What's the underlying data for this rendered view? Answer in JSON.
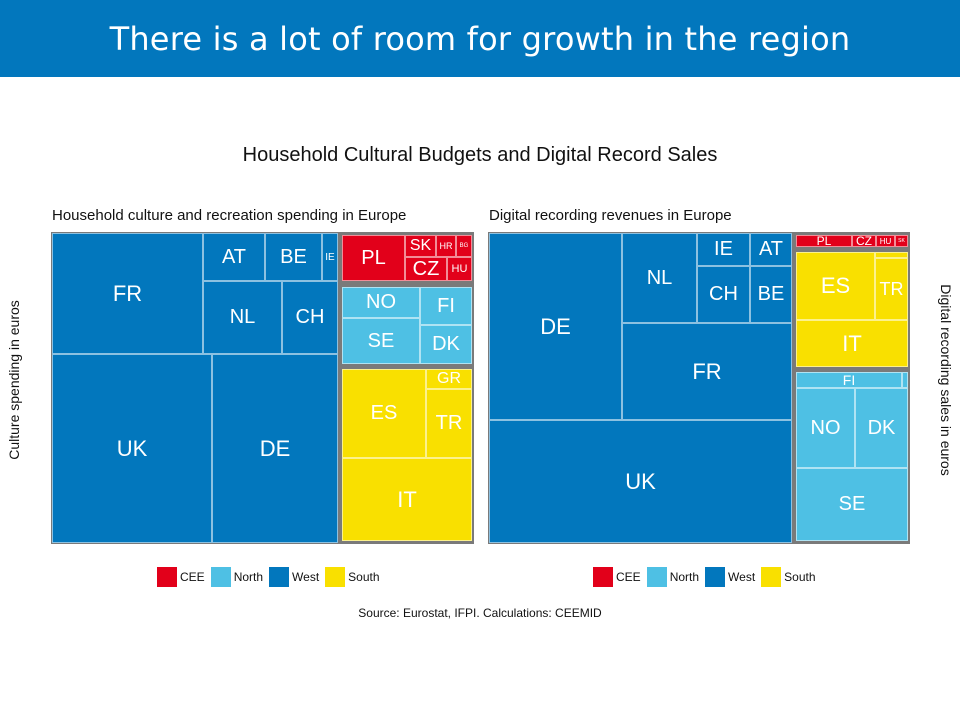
{
  "slide_title": "There is a lot of room for growth in the region",
  "chart_data": {
    "type": "treemap",
    "title": "Household Cultural Budgets and Digital Record Sales",
    "source": "Source: Eurostat, IFPI. Calculations: CEEMID",
    "colors": {
      "CEE": "#e2001a",
      "North": "#4ec0e4",
      "West": "#0277bd",
      "South": "#f9e000"
    },
    "legend": [
      {
        "label": "CEE",
        "key": "CEE"
      },
      {
        "label": "North",
        "key": "North"
      },
      {
        "label": "West",
        "key": "West"
      },
      {
        "label": "South",
        "key": "South"
      }
    ],
    "panels": [
      {
        "subtitle": "Household culture and recreation spending in Europe",
        "ylabel": "Culture spending in euros",
        "items": [
          {
            "label": "FR",
            "region": "West"
          },
          {
            "label": "AT",
            "region": "West"
          },
          {
            "label": "BE",
            "region": "West"
          },
          {
            "label": "IE",
            "region": "West"
          },
          {
            "label": "NL",
            "region": "West"
          },
          {
            "label": "CH",
            "region": "West"
          },
          {
            "label": "UK",
            "region": "West"
          },
          {
            "label": "DE",
            "region": "West"
          },
          {
            "label": "PL",
            "region": "CEE"
          },
          {
            "label": "SK",
            "region": "CEE"
          },
          {
            "label": "HR",
            "region": "CEE"
          },
          {
            "label": "BG",
            "region": "CEE"
          },
          {
            "label": "CZ",
            "region": "CEE"
          },
          {
            "label": "HU",
            "region": "CEE"
          },
          {
            "label": "NO",
            "region": "North"
          },
          {
            "label": "SE",
            "region": "North"
          },
          {
            "label": "FI",
            "region": "North"
          },
          {
            "label": "DK",
            "region": "North"
          },
          {
            "label": "ES",
            "region": "South"
          },
          {
            "label": "GR",
            "region": "South"
          },
          {
            "label": "TR",
            "region": "South"
          },
          {
            "label": "IT",
            "region": "South"
          }
        ]
      },
      {
        "subtitle": "Digital recording revenues in Europe",
        "ylabel": "Digital recording sales in euros",
        "items": [
          {
            "label": "DE",
            "region": "West"
          },
          {
            "label": "NL",
            "region": "West"
          },
          {
            "label": "IE",
            "region": "West"
          },
          {
            "label": "AT",
            "region": "West"
          },
          {
            "label": "CH",
            "region": "West"
          },
          {
            "label": "BE",
            "region": "West"
          },
          {
            "label": "FR",
            "region": "West"
          },
          {
            "label": "UK",
            "region": "West"
          },
          {
            "label": "PL",
            "region": "CEE"
          },
          {
            "label": "CZ",
            "region": "CEE"
          },
          {
            "label": "HU",
            "region": "CEE"
          },
          {
            "label": "SK",
            "region": "CEE"
          },
          {
            "label": "ES",
            "region": "South"
          },
          {
            "label": "TR",
            "region": "South"
          },
          {
            "label": "IT",
            "region": "South"
          },
          {
            "label": "FI",
            "region": "North"
          },
          {
            "label": "NO",
            "region": "North"
          },
          {
            "label": "DK",
            "region": "North"
          },
          {
            "label": "SE",
            "region": "North"
          }
        ]
      }
    ]
  }
}
